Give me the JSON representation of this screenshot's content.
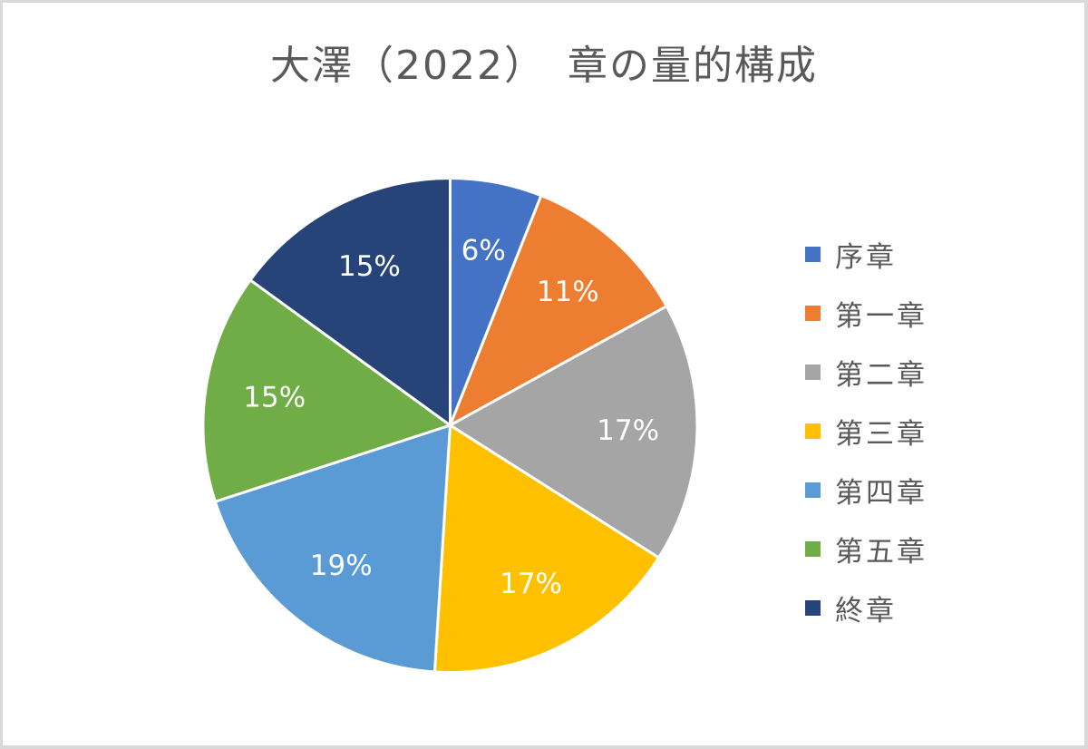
{
  "chart_data": {
    "type": "pie",
    "title": "大澤（2022）　章の量的構成",
    "categories": [
      "序章",
      "第一章",
      "第二章",
      "第三章",
      "第四章",
      "第五章",
      "終章"
    ],
    "values": [
      6,
      11,
      17,
      17,
      19,
      15,
      15
    ],
    "labels": [
      "6%",
      "11%",
      "17%",
      "17%",
      "19%",
      "15%",
      "15%"
    ],
    "colors": [
      "#4472c4",
      "#ed7d31",
      "#a5a5a5",
      "#ffc000",
      "#5b9bd5",
      "#70ad47",
      "#264478"
    ],
    "legend_position": "right",
    "start_angle_deg": 0,
    "direction": "clockwise"
  },
  "legend": {
    "items": [
      {
        "label": "序章",
        "color": "#4472c4"
      },
      {
        "label": "第一章",
        "color": "#ed7d31"
      },
      {
        "label": "第二章",
        "color": "#a5a5a5"
      },
      {
        "label": "第三章",
        "color": "#ffc000"
      },
      {
        "label": "第四章",
        "color": "#5b9bd5"
      },
      {
        "label": "第五章",
        "color": "#70ad47"
      },
      {
        "label": "終章",
        "color": "#264478"
      }
    ]
  }
}
